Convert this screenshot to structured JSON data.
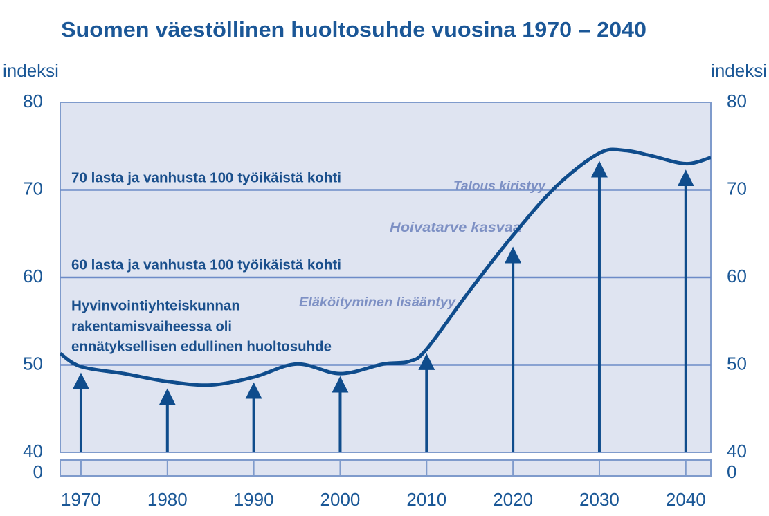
{
  "chart_data": {
    "type": "line",
    "title": "Suomen väestöllinen huoltosuhde vuosina 1970 – 2040",
    "y_label": "indeksi",
    "x": [
      1967.6,
      1970,
      1975,
      1980,
      1985,
      1990,
      1995,
      2000,
      2005,
      2008,
      2010,
      2015,
      2020,
      2025,
      2030,
      2033,
      2036,
      2040,
      2042.9
    ],
    "values": [
      51.3,
      49.8,
      49.0,
      48.1,
      47.7,
      48.6,
      50.1,
      49.0,
      50.1,
      50.4,
      51.8,
      58.5,
      64.8,
      70.4,
      74.2,
      74.5,
      73.9,
      73.0,
      73.7
    ],
    "color": "#0f4c8c",
    "arrows": {
      "x": [
        1970,
        1980,
        1990,
        2000,
        2010,
        2020,
        2030,
        2040
      ],
      "values": [
        48.8,
        47.0,
        47.7,
        48.4,
        51.0,
        63.2,
        73.0,
        72.0
      ]
    },
    "xlim": [
      1967.6,
      2042.9
    ],
    "xticks": [
      1970,
      1980,
      1990,
      2000,
      2010,
      2020,
      2030,
      2040
    ],
    "ylim": [
      40,
      80
    ],
    "yticks": [
      0,
      40,
      50,
      60,
      70,
      80
    ],
    "axis_break": true,
    "grid": true,
    "annotations": [
      "70 lasta ja vanhusta 100 työikäistä kohti",
      "60 lasta ja vanhusta 100 työikäistä kohti",
      "Hyvinvointiyhteiskunnan",
      "rakentamisvaiheessa oli",
      "ennätyksellisen edullinen huoltosuhde",
      "Talous kiristyy",
      "Hoivatarve kasvaa",
      "Eläköityminen lisääntyy"
    ]
  }
}
